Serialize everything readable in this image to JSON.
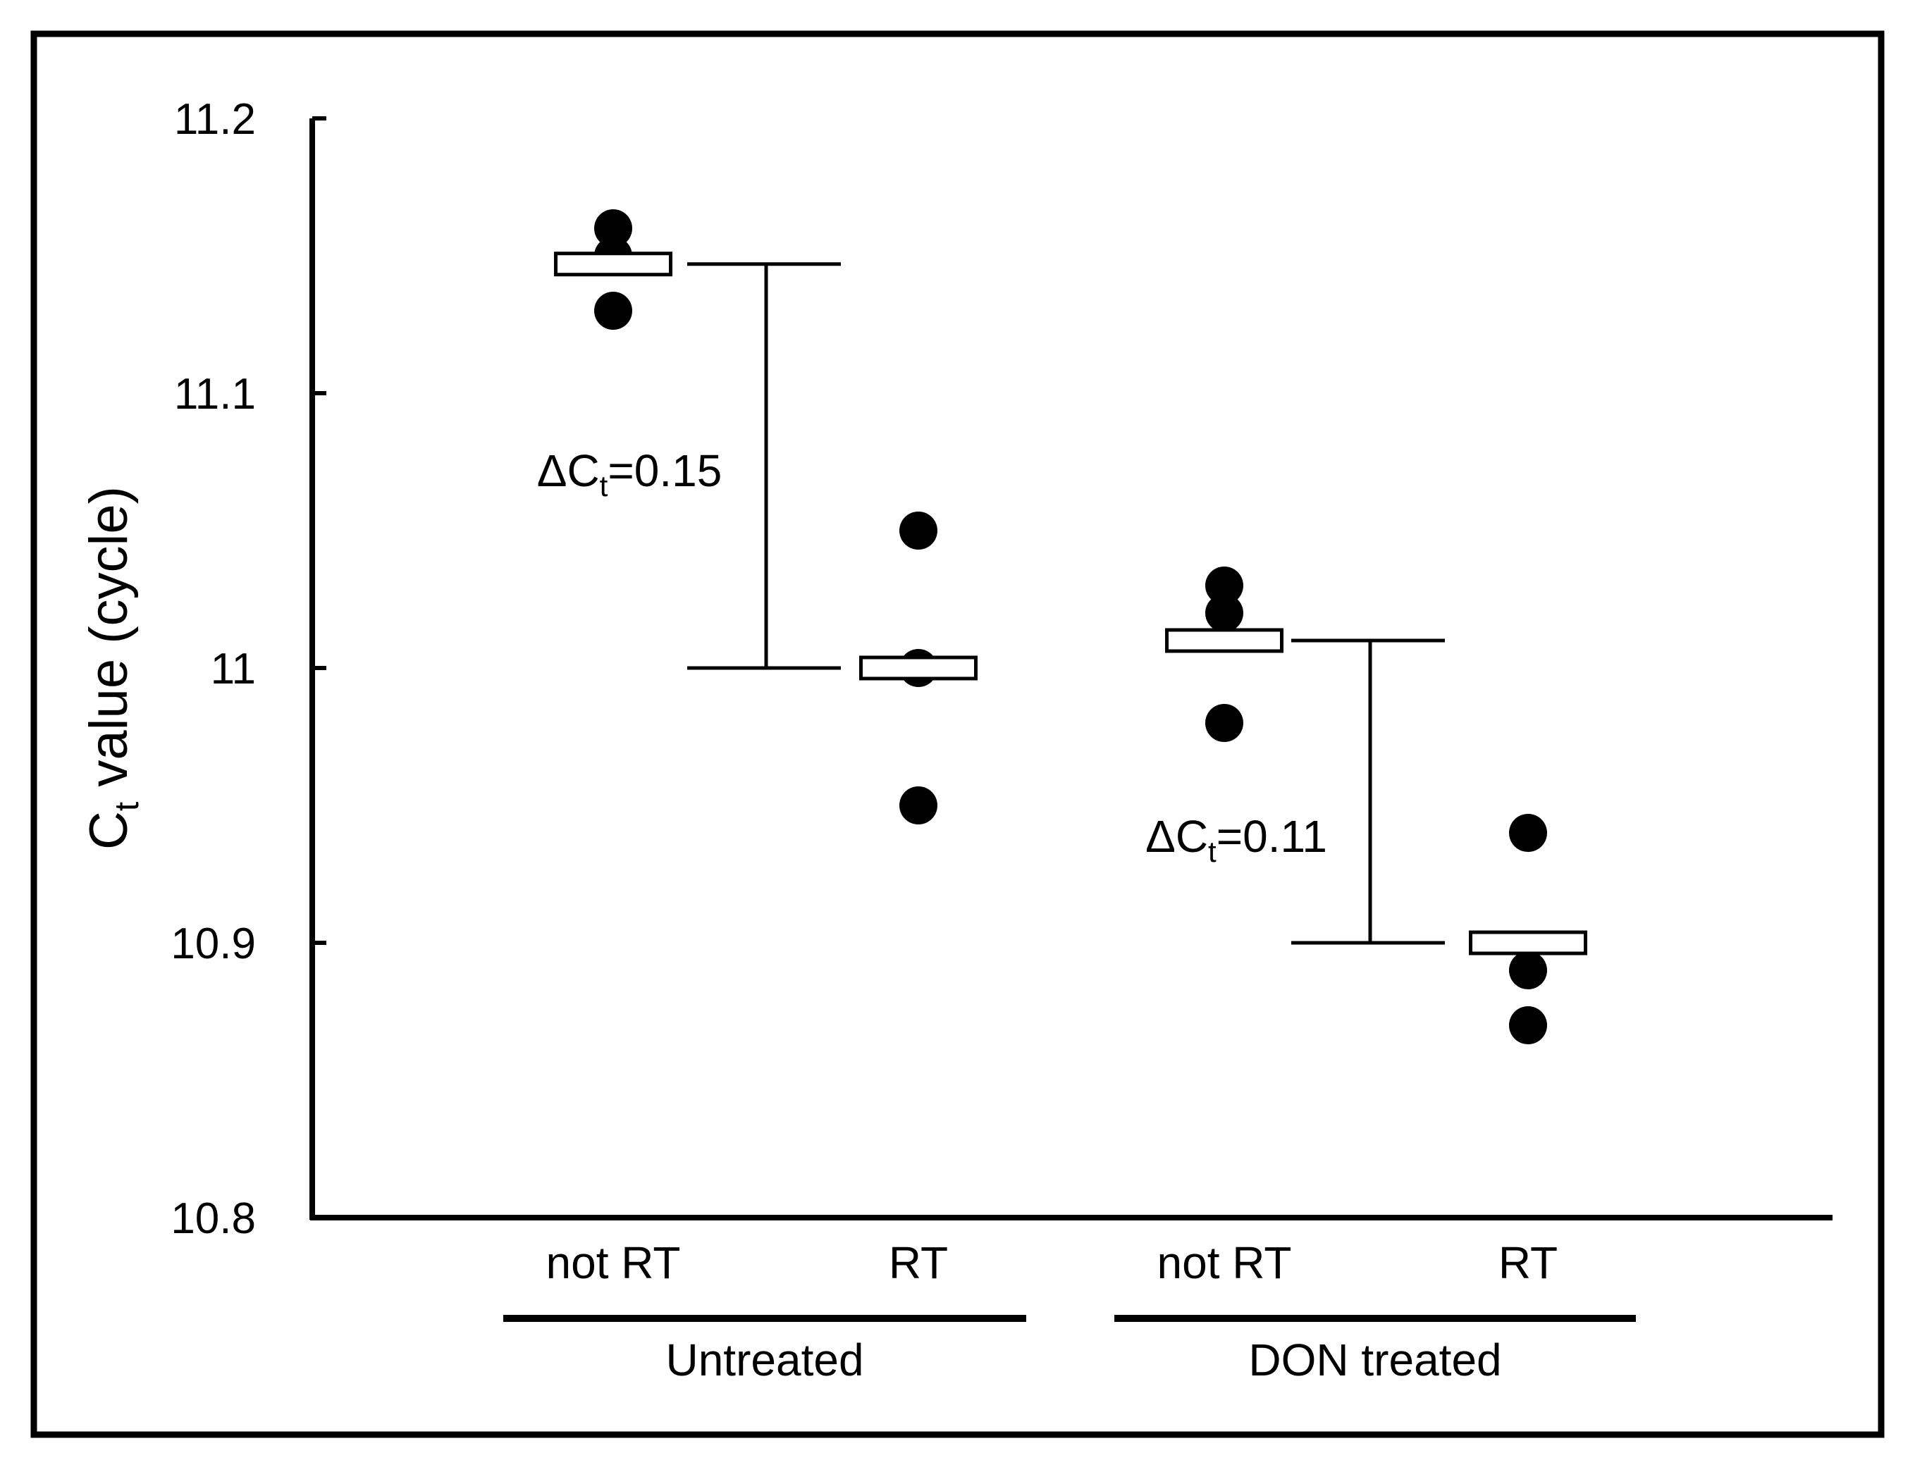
{
  "chart_data": {
    "type": "scatter",
    "title": "",
    "xlabel": "",
    "ylabel": {
      "base": "C",
      "sub": "t",
      "rest": " value (cycle)"
    },
    "ylim": [
      10.8,
      11.2
    ],
    "yticks": [
      10.8,
      10.9,
      11,
      11.1,
      11.2
    ],
    "ytick_labels": [
      "10.8",
      "10.9",
      "11",
      "11.1",
      "11.2"
    ],
    "categories": [
      "not RT",
      "RT",
      "not RT",
      "RT"
    ],
    "groups": [
      {
        "label": "Untreated",
        "categories": [
          0,
          1
        ]
      },
      {
        "label": "DON treated",
        "categories": [
          2,
          3
        ]
      }
    ],
    "series": [
      {
        "name": "not RT (Untreated)",
        "values": [
          11.16,
          11.15,
          11.13
        ],
        "mean": 11.147
      },
      {
        "name": "RT (Untreated)",
        "values": [
          11.05,
          11.0,
          10.95
        ],
        "mean": 11.0
      },
      {
        "name": "not RT (DON treated)",
        "values": [
          11.03,
          11.02,
          10.98
        ],
        "mean": 11.01
      },
      {
        "name": "RT (DON treated)",
        "values": [
          10.94,
          10.89,
          10.87
        ],
        "mean": 10.9
      }
    ],
    "annotations": [
      {
        "from_mean": 11.147,
        "to_mean": 11.0,
        "label": {
          "pre": "ΔC",
          "sub": "t",
          "post": "=0.15"
        }
      },
      {
        "from_mean": 11.01,
        "to_mean": 10.9,
        "label": {
          "pre": "ΔC",
          "sub": "t",
          "post": "=0.11"
        }
      }
    ],
    "colors": {
      "marker": "#000000",
      "mean_box_fill": "#ffffff",
      "axis": "#000000"
    }
  }
}
